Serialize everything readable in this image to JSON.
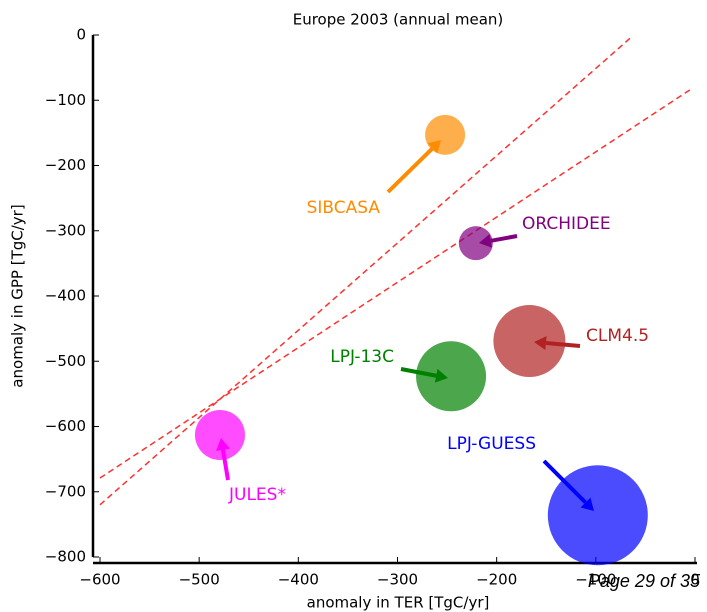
{
  "chart_data": {
    "type": "scatter",
    "title": "Europe 2003 (annual mean)",
    "xlabel": "anomaly in TER [TgC/yr]",
    "ylabel": "anomaly in GPP [TgC/yr]",
    "xlim": [
      -600,
      0
    ],
    "ylim": [
      -800,
      0
    ],
    "xticks": [
      {
        "value": -600,
        "label": "−600"
      },
      {
        "value": -500,
        "label": "−500"
      },
      {
        "value": -400,
        "label": "−400"
      },
      {
        "value": -300,
        "label": "−300"
      },
      {
        "value": -200,
        "label": "−200"
      },
      {
        "value": -100,
        "label": "−100"
      },
      0
    ],
    "yticks": [
      0,
      {
        "value": -100,
        "label": "−100"
      },
      {
        "value": -200,
        "label": "−200"
      },
      {
        "value": -300,
        "label": "−300"
      },
      {
        "value": -400,
        "label": "−400"
      },
      {
        "value": -500,
        "label": "−500"
      },
      {
        "value": -600,
        "label": "−600"
      },
      {
        "value": -700,
        "label": "−700"
      },
      {
        "value": -800,
        "label": "−800"
      }
    ],
    "lines": [
      {
        "color": "#ff3030",
        "x": [
          -600,
          -64
        ],
        "values": [
          -720,
          -3
        ]
      },
      {
        "color": "#ff3030",
        "x": [
          -600,
          -5
        ],
        "values": [
          -679,
          -84
        ]
      }
    ],
    "series": [
      {
        "name": "SIBCASA",
        "color": "#ff8c00",
        "x": [
          -252
        ],
        "values": [
          -153
        ],
        "sizes": [
          20
        ]
      },
      {
        "name": "ORCHIDEE",
        "color": "#800080",
        "x": [
          -221
        ],
        "values": [
          -319
        ],
        "sizes": [
          17
        ]
      },
      {
        "name": "CLM4.5",
        "color": "#b22222",
        "x": [
          -167
        ],
        "values": [
          -469
        ],
        "sizes": [
          36
        ]
      },
      {
        "name": "LPJ-13C",
        "color": "#008000",
        "x": [
          -246
        ],
        "values": [
          -523
        ],
        "sizes": [
          35
        ]
      },
      {
        "name": "LPJ-GUESS",
        "color": "#0000ff",
        "x": [
          -98
        ],
        "values": [
          -736
        ],
        "sizes": [
          50
        ]
      },
      {
        "name": "JULES*",
        "color": "#ff00ff",
        "x": [
          -479
        ],
        "values": [
          -613
        ],
        "sizes": [
          25
        ]
      }
    ]
  },
  "footer": "Page 29 of 35"
}
